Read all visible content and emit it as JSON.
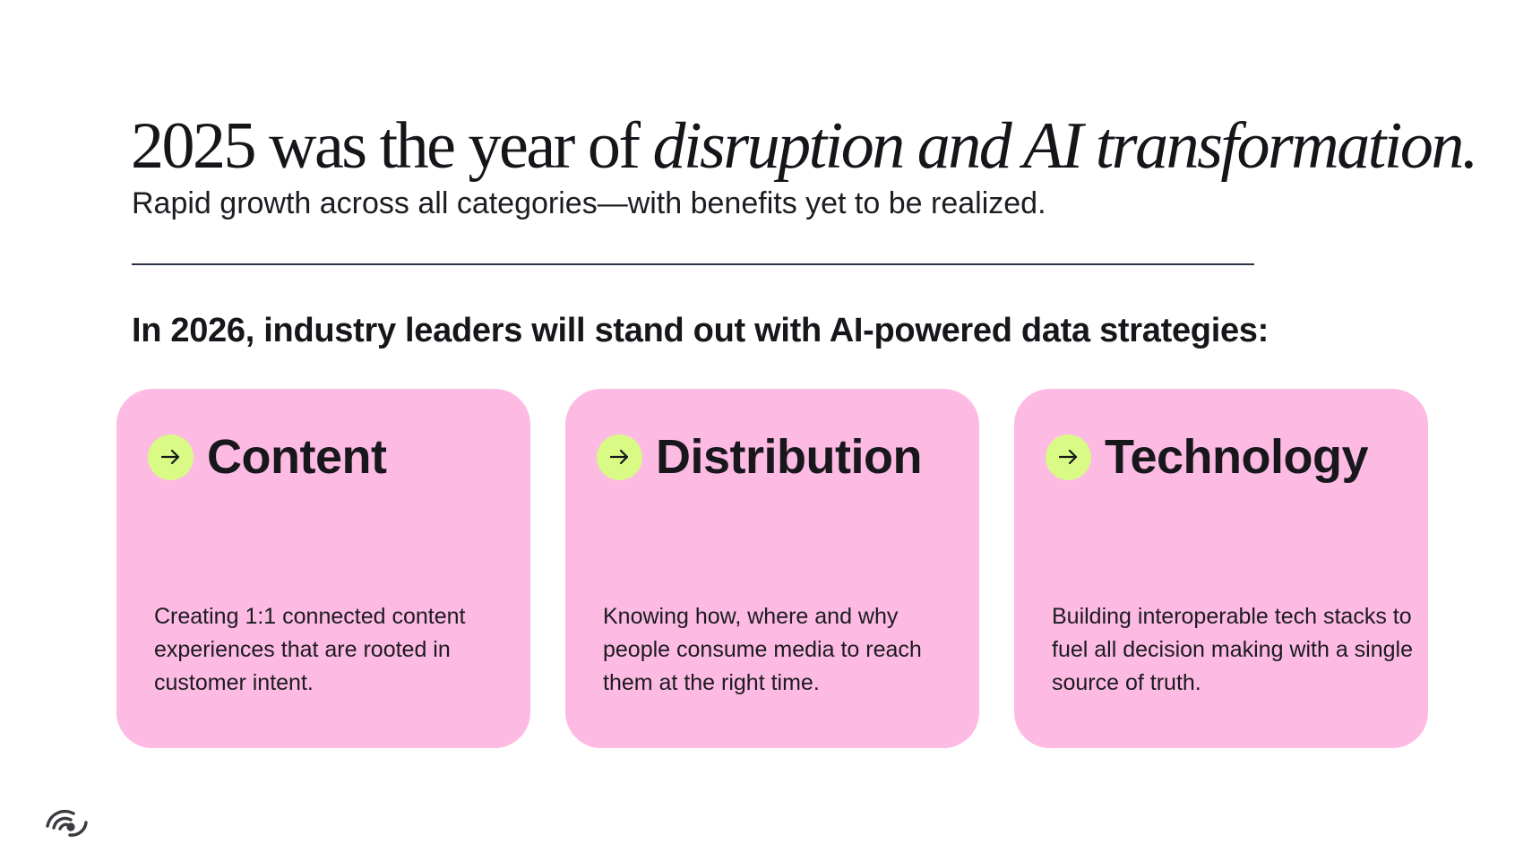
{
  "headline": {
    "plain": "2025 was the year of ",
    "italic": "disruption and AI transformation."
  },
  "subheadline": "Rapid growth across all categories—with benefits yet to be realized.",
  "section_heading": "In 2026, industry leaders will stand out with AI-powered data strategies:",
  "cards": [
    {
      "title": "Content",
      "description": "Creating 1:1 connected content experiences that are rooted in customer intent.",
      "icon": "arrow-right-icon"
    },
    {
      "title": "Distribution",
      "description": "Knowing how, where and why people consume media to reach them at the right time.",
      "icon": "arrow-right-icon"
    },
    {
      "title": "Technology",
      "description": "Building interoperable tech stacks to fuel all decision making with a single source of truth.",
      "icon": "arrow-right-icon"
    }
  ],
  "colors": {
    "card_background": "#fdbae2",
    "badge_background": "#d9fb86",
    "divider": "#2b3147",
    "text": "#16161b"
  },
  "logo_icon": "signal-waves-logo-icon"
}
